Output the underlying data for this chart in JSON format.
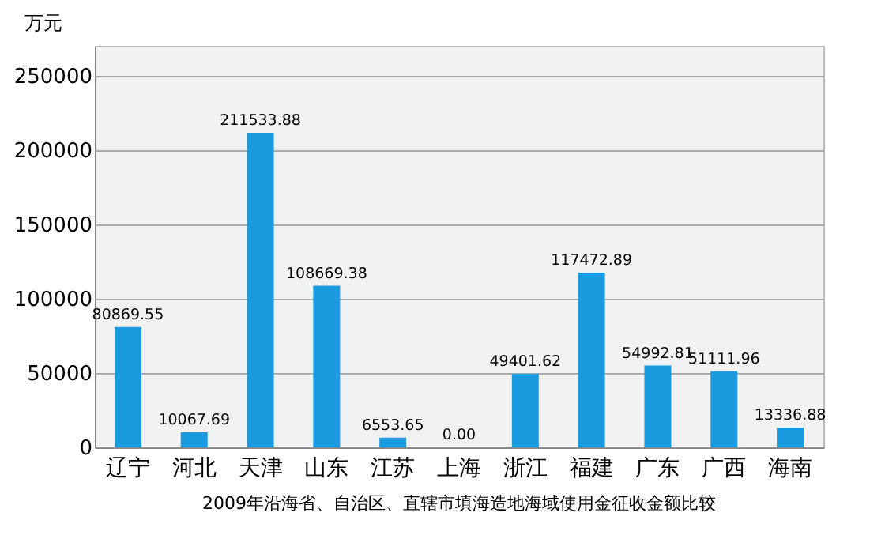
{
  "chart_data": {
    "type": "bar",
    "title": "2009年沿海省、自治区、直辖市填海造地海域使用金征收金额比较",
    "ylabel": "万元",
    "categories": [
      "辽宁",
      "河北",
      "天津",
      "山东",
      "江苏",
      "上海",
      "浙江",
      "福建",
      "广东",
      "广西",
      "海南"
    ],
    "values": [
      80869.55,
      10067.69,
      211533.88,
      108669.38,
      6553.65,
      0,
      49401.62,
      117472.89,
      54992.81,
      51111.96,
      13336.88
    ],
    "value_labels": [
      "80869.55",
      "10067.69",
      "211533.88",
      "108669.38",
      "6553.65",
      "0.00",
      "49401.62",
      "117472.89",
      "54992.81",
      "51111.96",
      "13336.88"
    ],
    "color": "#1a9be0",
    "ylim": [
      0,
      270000
    ],
    "yticks": [
      0,
      50000,
      100000,
      150000,
      200000,
      250000
    ],
    "grid": "y"
  }
}
